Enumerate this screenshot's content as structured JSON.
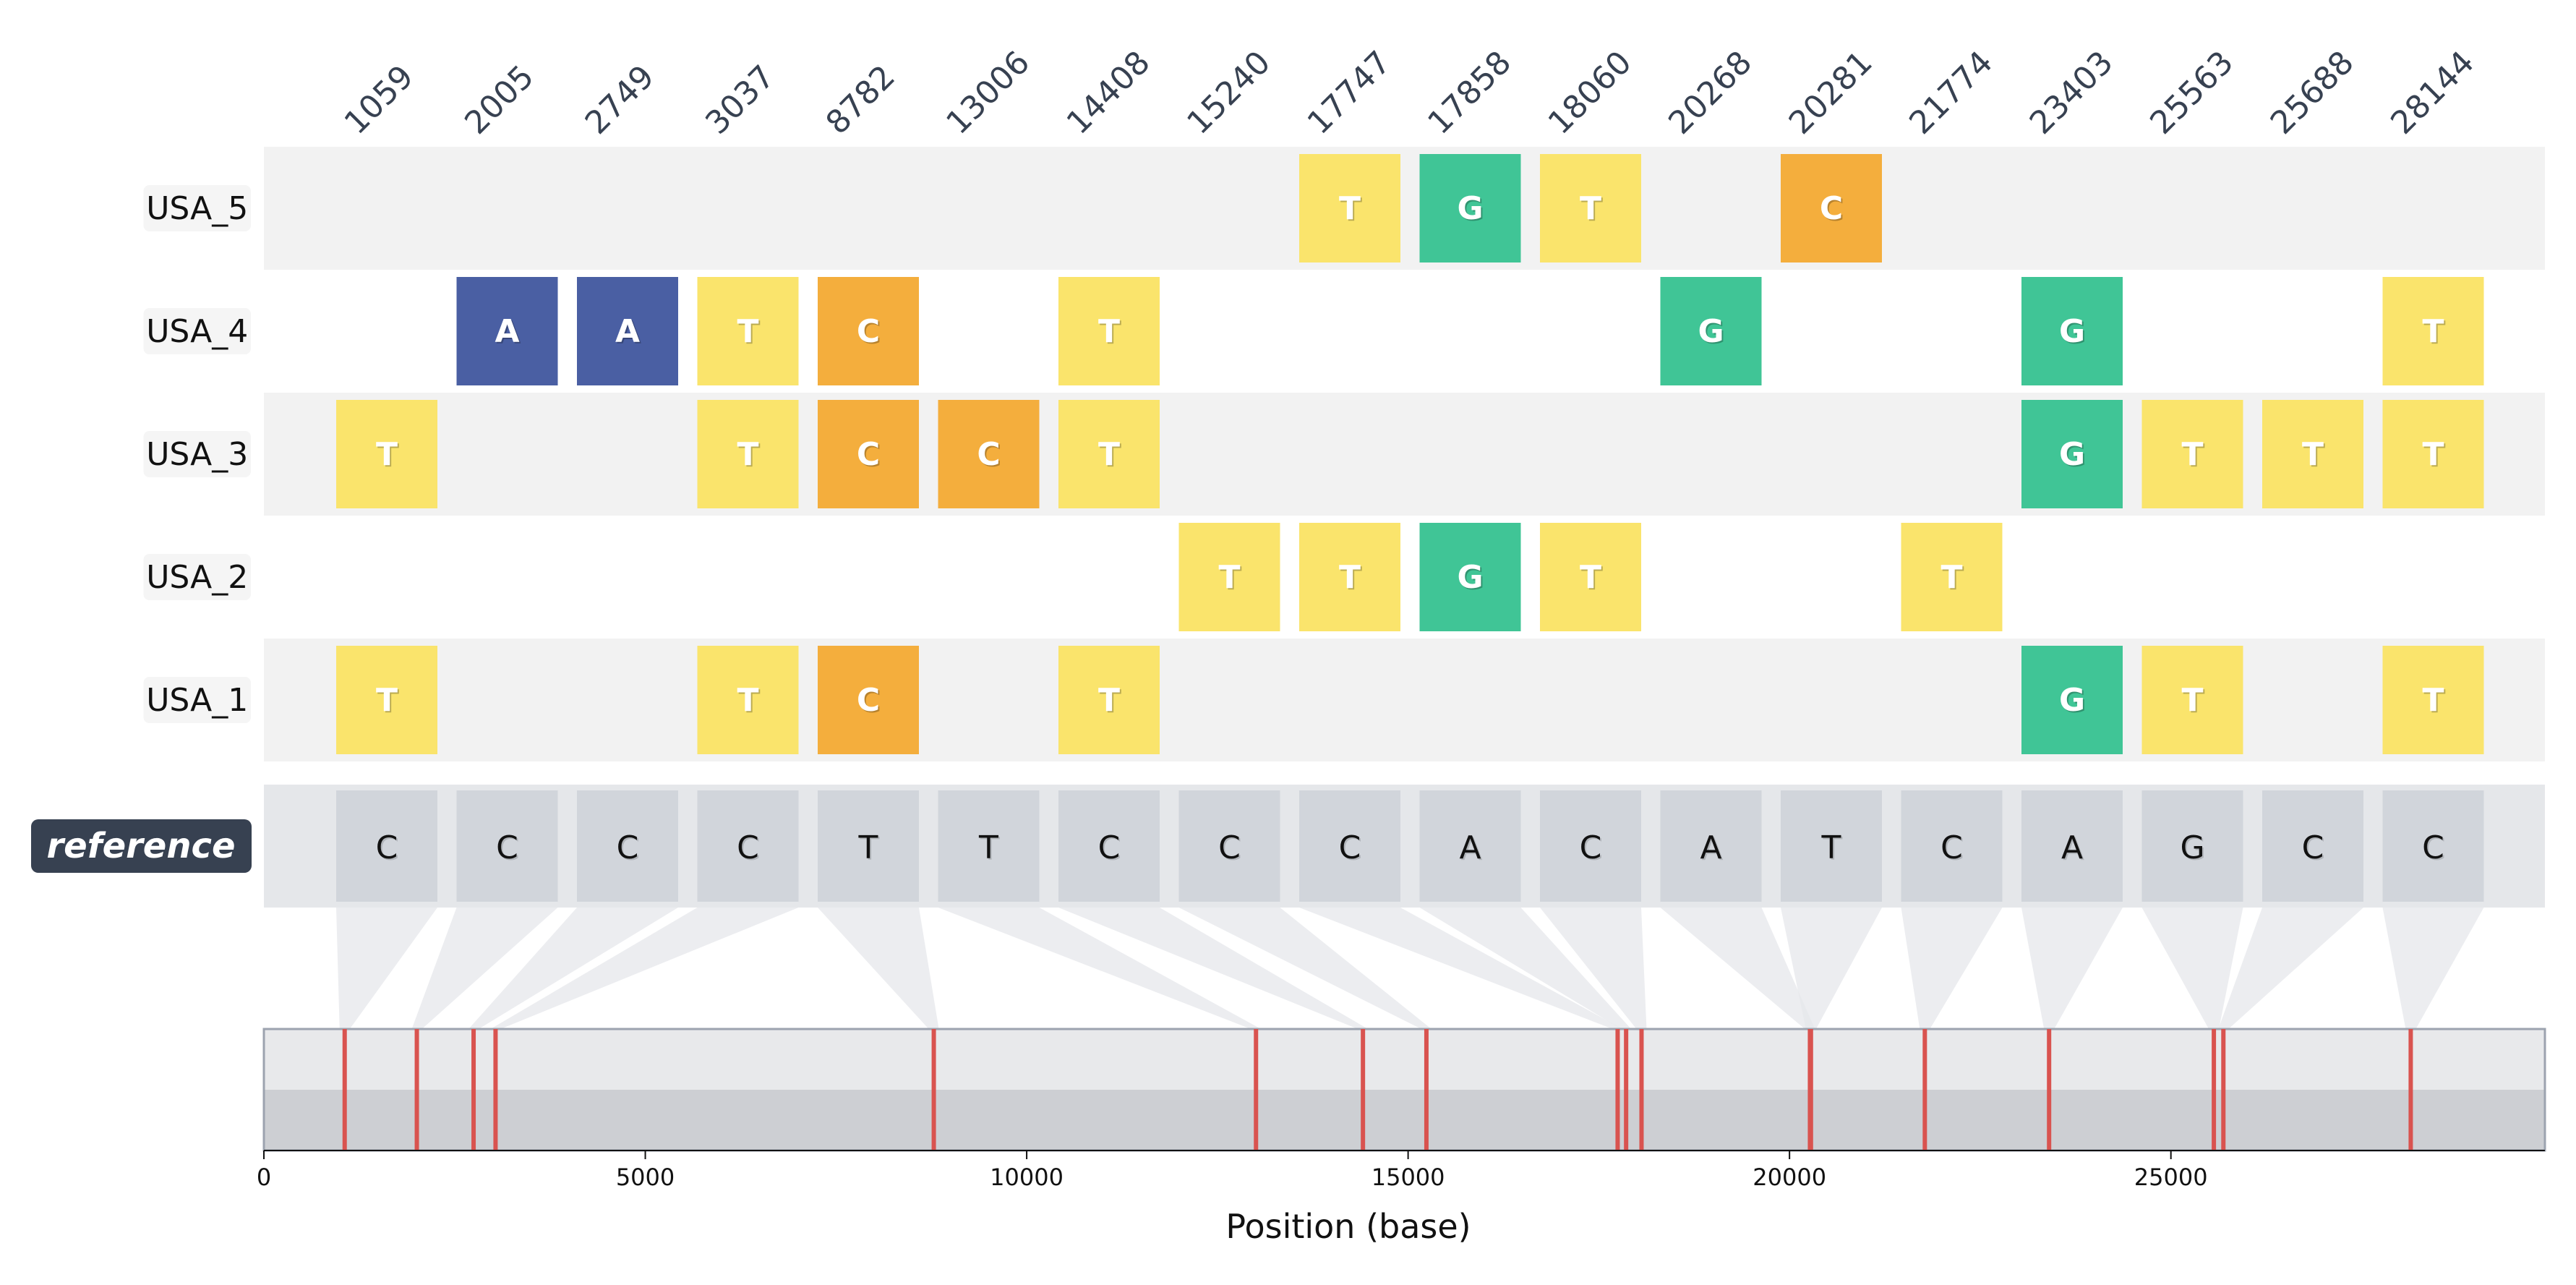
{
  "chart_data": {
    "type": "heatmap",
    "title": "",
    "xlabel": "Position (base)",
    "xlim": [
      0,
      29903
    ],
    "xticks": [
      0,
      5000,
      10000,
      15000,
      20000,
      25000
    ],
    "positions": [
      1059,
      2005,
      2749,
      3037,
      8782,
      13006,
      14408,
      15240,
      17747,
      17858,
      18060,
      20268,
      20281,
      21774,
      23403,
      25563,
      25688,
      28144
    ],
    "reference_label": "reference",
    "reference": [
      "C",
      "C",
      "C",
      "C",
      "T",
      "T",
      "C",
      "C",
      "C",
      "A",
      "C",
      "A",
      "T",
      "C",
      "A",
      "G",
      "C",
      "C"
    ],
    "samples": [
      {
        "name": "USA_5",
        "bases": [
          "",
          "",
          "",
          "",
          "",
          "",
          "",
          "",
          "T",
          "G",
          "T",
          "",
          "C",
          "",
          "",
          "",
          "",
          ""
        ]
      },
      {
        "name": "USA_4",
        "bases": [
          "",
          "A",
          "A",
          "T",
          "C",
          "",
          "T",
          "",
          "",
          "",
          "",
          "G",
          "",
          "",
          "G",
          "",
          "",
          "T"
        ]
      },
      {
        "name": "USA_3",
        "bases": [
          "T",
          "",
          "",
          "T",
          "C",
          "C",
          "T",
          "",
          "",
          "",
          "",
          "",
          "",
          "",
          "G",
          "T",
          "T",
          "T"
        ]
      },
      {
        "name": "USA_2",
        "bases": [
          "",
          "",
          "",
          "",
          "",
          "",
          "",
          "T",
          "T",
          "G",
          "T",
          "",
          "",
          "T",
          "",
          "",
          "",
          ""
        ]
      },
      {
        "name": "USA_1",
        "bases": [
          "T",
          "",
          "",
          "T",
          "C",
          "",
          "T",
          "",
          "",
          "",
          "",
          "",
          "",
          "",
          "G",
          "T",
          "",
          "T"
        ]
      }
    ],
    "base_colors": {
      "A": "#4a5fa3",
      "C": "#f4ae3d",
      "G": "#40c596",
      "T": "#fae46c"
    },
    "colors": {
      "row_shade": "#f2f2f2",
      "reference_band": "#e5e7ea",
      "reference_cell": "#d1d5db",
      "reference_badge": "#374151",
      "marker": "#d9534f",
      "connector": "#e5e7eb"
    },
    "grid": false
  }
}
